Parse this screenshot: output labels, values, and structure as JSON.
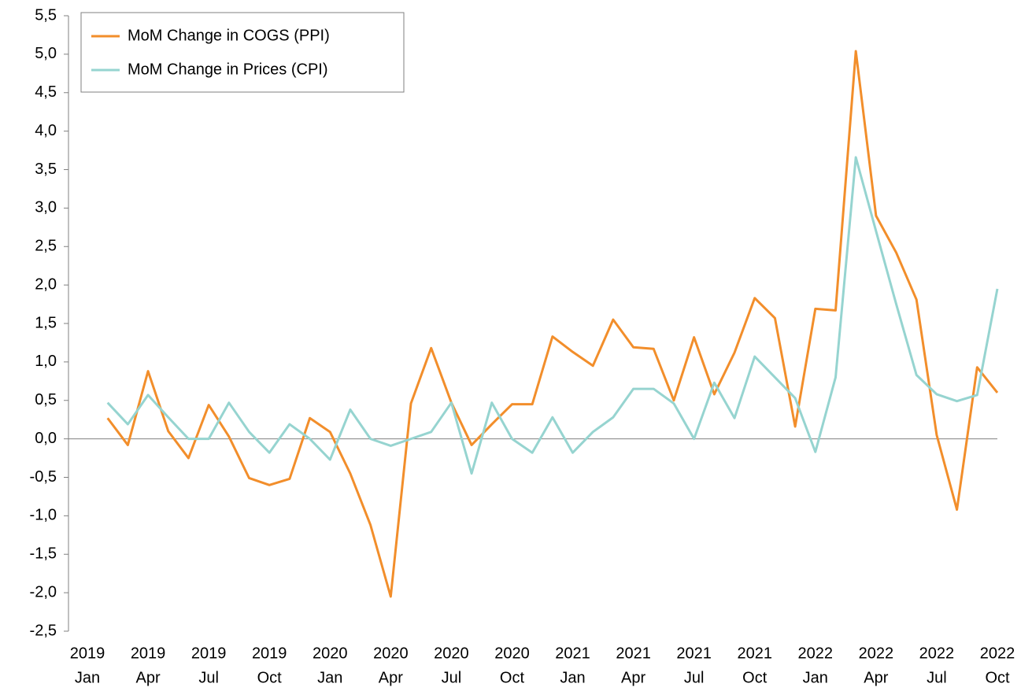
{
  "chart_data": {
    "type": "line",
    "categories": [
      [
        "2019",
        "Jan"
      ],
      null,
      null,
      [
        "2019",
        "Apr"
      ],
      null,
      null,
      [
        "2019",
        "Jul"
      ],
      null,
      null,
      [
        "2019",
        "Oct"
      ],
      null,
      null,
      [
        "2020",
        "Jan"
      ],
      null,
      null,
      [
        "2020",
        "Apr"
      ],
      null,
      null,
      [
        "2020",
        "Jul"
      ],
      null,
      null,
      [
        "2020",
        "Oct"
      ],
      null,
      null,
      [
        "2021",
        "Jan"
      ],
      null,
      null,
      [
        "2021",
        "Apr"
      ],
      null,
      null,
      [
        "2021",
        "Jul"
      ],
      null,
      null,
      [
        "2021",
        "Oct"
      ],
      null,
      null,
      [
        "2022",
        "Jan"
      ],
      null,
      null,
      [
        "2022",
        "Apr"
      ],
      null,
      null,
      [
        "2022",
        "Jul"
      ],
      null,
      null,
      [
        "2022",
        "Oct"
      ]
    ],
    "series": [
      {
        "name": "MoM Change in COGS (PPI)",
        "color": "#f28e2b",
        "values": [
          null,
          0.27,
          -0.08,
          0.88,
          0.1,
          -0.25,
          0.44,
          0.03,
          -0.51,
          -0.6,
          -0.52,
          0.27,
          0.09,
          -0.45,
          -1.12,
          -2.05,
          0.46,
          1.18,
          0.47,
          -0.08,
          0.19,
          0.45,
          0.45,
          1.33,
          1.13,
          0.95,
          1.55,
          1.19,
          1.17,
          0.5,
          1.32,
          0.58,
          1.12,
          1.83,
          1.57,
          0.16,
          1.69,
          1.67,
          5.04,
          2.9,
          2.42,
          1.81,
          0.05,
          -0.92,
          0.93,
          0.6
        ]
      },
      {
        "name": "MoM Change in Prices (CPI)",
        "color": "#96d4d0",
        "values": [
          null,
          0.47,
          0.19,
          0.57,
          0.28,
          0.0,
          0.0,
          0.47,
          0.09,
          -0.18,
          0.19,
          0.0,
          -0.27,
          0.38,
          0.0,
          -0.09,
          0.0,
          0.09,
          0.47,
          -0.45,
          0.47,
          0.0,
          -0.18,
          0.28,
          -0.18,
          0.09,
          0.28,
          0.65,
          0.65,
          0.46,
          0.0,
          0.73,
          0.27,
          1.07,
          0.8,
          0.53,
          -0.17,
          0.8,
          3.66,
          2.7,
          1.75,
          0.83,
          0.58,
          0.49,
          0.57,
          1.95
        ]
      }
    ],
    "ylim": [
      -2.5,
      5.5
    ],
    "yticks": [
      {
        "value": -2.5,
        "label": "-2,5"
      },
      {
        "value": -2,
        "label": "-2,0"
      },
      {
        "value": -1.5,
        "label": "-1,5"
      },
      {
        "value": -1,
        "label": "-1,0"
      },
      {
        "value": -0.5,
        "label": "-0,5"
      },
      {
        "value": 0,
        "label": "0,0"
      },
      {
        "value": 0.5,
        "label": "0,5"
      },
      {
        "value": 1,
        "label": "1,0"
      },
      {
        "value": 1.5,
        "label": "1,5"
      },
      {
        "value": 2,
        "label": "2,0"
      },
      {
        "value": 2.5,
        "label": "2,5"
      },
      {
        "value": 3,
        "label": "3,0"
      },
      {
        "value": 3.5,
        "label": "3,5"
      },
      {
        "value": 4,
        "label": "4,0"
      },
      {
        "value": 4.5,
        "label": "4,5"
      },
      {
        "value": 5,
        "label": "5,0"
      },
      {
        "value": 5.5,
        "label": "5,5"
      }
    ],
    "legend": "upper left"
  }
}
